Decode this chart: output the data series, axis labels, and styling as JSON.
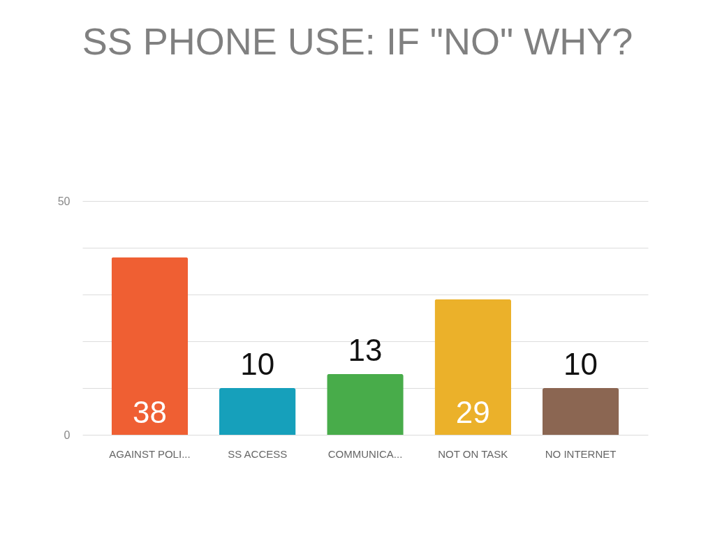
{
  "chart_data": {
    "type": "bar",
    "title": "SS PHONE USE: IF \"NO\" WHY?",
    "categories": [
      "AGAINST POLI...",
      "SS ACCESS",
      "COMMUNICA...",
      "NOT ON TASK",
      "NO INTERNET"
    ],
    "values": [
      38,
      10,
      13,
      29,
      10
    ],
    "colors": [
      "#ef5f33",
      "#16a0bb",
      "#48ac4a",
      "#ebb12a",
      "#8b6652"
    ],
    "ylim": [
      0,
      50
    ],
    "yticks": [
      0,
      {
        "value": 10,
        "label": null
      },
      {
        "value": 20,
        "label": null
      },
      {
        "value": 30,
        "label": null
      },
      {
        "value": 40,
        "label": null
      },
      50
    ],
    "grid": "y",
    "data_labels": true
  }
}
